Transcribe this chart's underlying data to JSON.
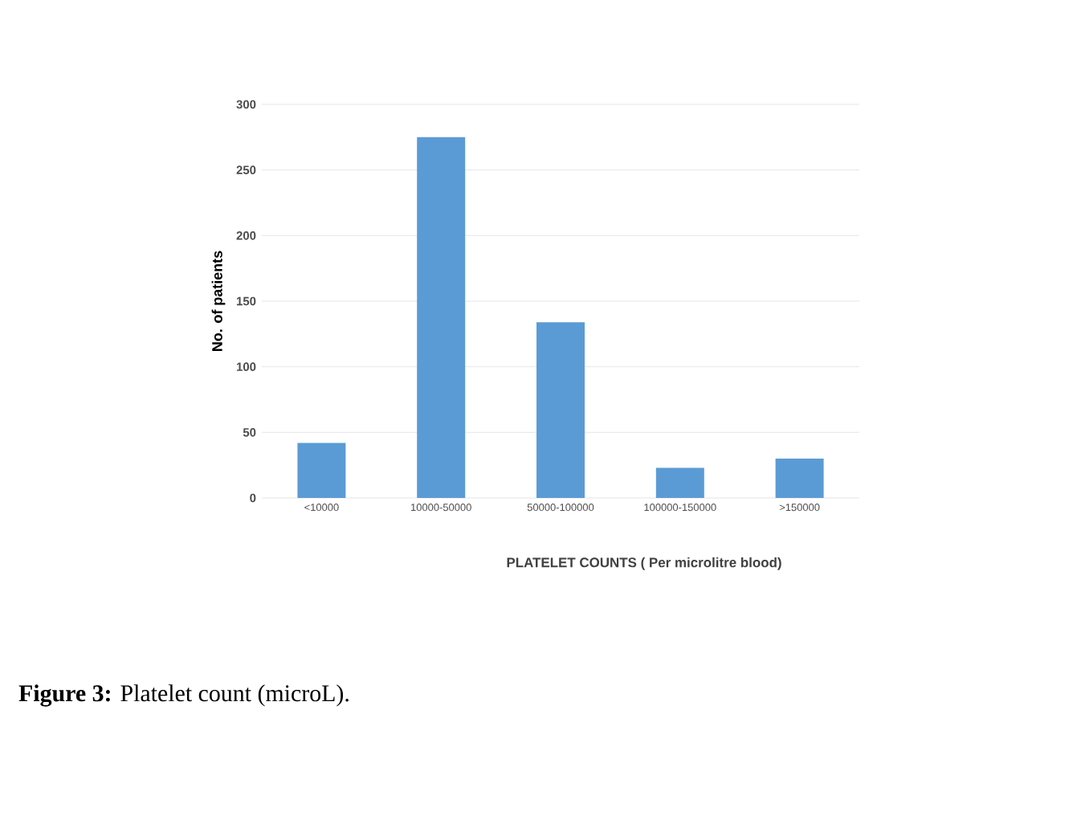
{
  "chart_data": {
    "type": "bar",
    "categories": [
      "<10000",
      "10000-50000",
      "50000-100000",
      "100000-150000",
      ">150000"
    ],
    "values": [
      42,
      275,
      134,
      23,
      30
    ],
    "color": "#5b9bd5",
    "xlabel": "PLATELET COUNTS ( Per microlitre blood)",
    "ylabel": "No. of patients",
    "ylim": [
      0,
      300
    ],
    "yticks": [
      0,
      50,
      100,
      150,
      200,
      250,
      300
    ],
    "grid": "y",
    "annotations": [
      "**Figure 3:** Platelet count (microL)."
    ]
  }
}
